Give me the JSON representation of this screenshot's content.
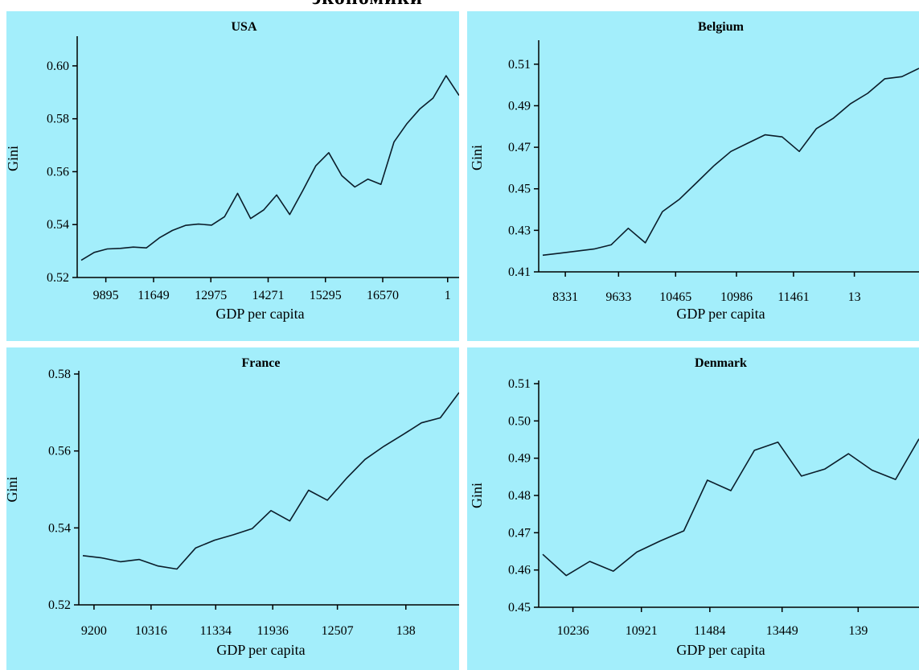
{
  "page": {
    "heading": "экономики"
  },
  "style": {
    "panel_background": "#a3eefb",
    "line_color": "#0b1d2a",
    "axis_color": "#000000"
  },
  "chart_data": [
    {
      "id": "usa",
      "type": "line",
      "title": "USA",
      "xlabel": "GDP per capita",
      "ylabel": "Gini",
      "x_tick_labels": [
        "9895",
        "11649",
        "12975",
        "14271",
        "15295",
        "16570",
        "1"
      ],
      "y_ticks": [
        "0.52",
        "0.54",
        "0.56",
        "0.58",
        "0.60"
      ],
      "ylim": [
        0.52,
        0.61
      ],
      "series": [
        {
          "values": [
            0.5265,
            0.5295,
            0.5308,
            0.531,
            0.5315,
            0.5312,
            0.535,
            0.5378,
            0.5397,
            0.5402,
            0.5398,
            0.543,
            0.5518,
            0.5423,
            0.5455,
            0.5512,
            0.5438,
            0.5528,
            0.5622,
            0.5672,
            0.5585,
            0.5542,
            0.5572,
            0.5552,
            0.5712,
            0.5782,
            0.5838,
            0.5878,
            0.5963,
            0.5888
          ]
        }
      ]
    },
    {
      "id": "belgium",
      "type": "line",
      "title": "Belgium",
      "xlabel": "GDP per capita",
      "ylabel": "Gini",
      "x_tick_labels": [
        "8331",
        "9633",
        "10465",
        "10986",
        "11461",
        "13"
      ],
      "y_ticks": [
        "0.41",
        "0.43",
        "0.45",
        "0.47",
        "0.49",
        "0.51"
      ],
      "ylim": [
        0.41,
        0.52
      ],
      "series": [
        {
          "values": [
            0.418,
            0.419,
            0.42,
            0.421,
            0.423,
            0.431,
            0.424,
            0.439,
            0.445,
            0.453,
            0.461,
            0.468,
            0.472,
            0.476,
            0.475,
            0.468,
            0.479,
            0.484,
            0.491,
            0.496,
            0.503,
            0.504,
            0.508
          ]
        }
      ]
    },
    {
      "id": "france",
      "type": "line",
      "title": "France",
      "xlabel": "GDP per capita",
      "ylabel": "Gini",
      "x_tick_labels": [
        "9200",
        "10316",
        "11334",
        "11936",
        "12507",
        "138"
      ],
      "y_ticks": [
        "0.52",
        "0.54",
        "0.56",
        "0.58"
      ],
      "ylim": [
        0.52,
        0.58
      ],
      "series": [
        {
          "values": [
            0.5328,
            0.5322,
            0.5312,
            0.5318,
            0.5301,
            0.5293,
            0.5348,
            0.5368,
            0.5382,
            0.5398,
            0.5445,
            0.5418,
            0.5498,
            0.5472,
            0.5528,
            0.5578,
            0.5612,
            0.5642,
            0.5673,
            0.5686,
            0.5752
          ]
        }
      ]
    },
    {
      "id": "denmark",
      "type": "line",
      "title": "Denmark",
      "xlabel": "GDP per capita",
      "ylabel": "Gini",
      "x_tick_labels": [
        "10236",
        "10921",
        "11484",
        "13449",
        "139"
      ],
      "y_ticks": [
        "0.45",
        "0.46",
        "0.47",
        "0.48",
        "0.49",
        "0.50",
        "0.51"
      ],
      "ylim": [
        0.45,
        0.51
      ],
      "series": [
        {
          "values": [
            0.4642,
            0.4585,
            0.4623,
            0.4597,
            0.4648,
            0.4678,
            0.4705,
            0.4841,
            0.4813,
            0.4921,
            0.4943,
            0.4852,
            0.4871,
            0.4912,
            0.4868,
            0.4843,
            0.4952
          ]
        }
      ]
    }
  ]
}
